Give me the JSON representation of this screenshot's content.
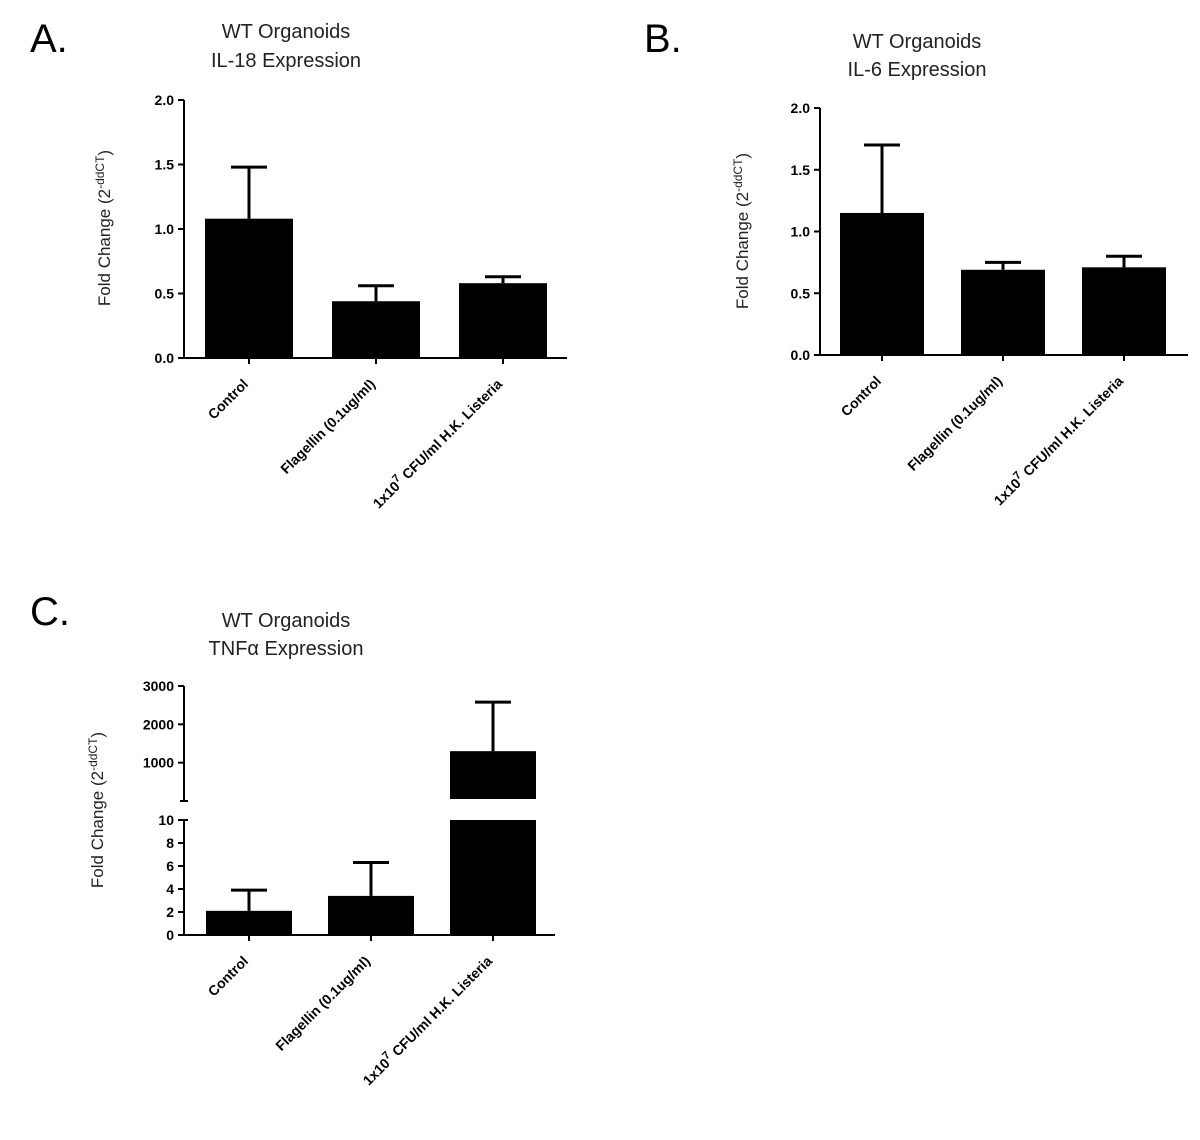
{
  "chart_data": [
    {
      "panel": "A.",
      "type": "bar",
      "title": "WT Organoids",
      "subtitle": "IL-18 Expression",
      "ylabel": "Fold Change (2",
      "ylabel_sup": "-ddCT",
      "ylabel_end": ")",
      "ylim": [
        0,
        2.0
      ],
      "yticks": [
        "0.0",
        "0.5",
        "1.0",
        "1.5",
        "2.0"
      ],
      "categories": [
        "Control",
        "Flagellin (0.1ug/ml)",
        "1x10^7 CFU/ml H.K. Listeria"
      ],
      "values": [
        1.08,
        0.44,
        0.58
      ],
      "errors": [
        0.4,
        0.12,
        0.05
      ]
    },
    {
      "panel": "B.",
      "type": "bar",
      "title": "WT Organoids",
      "subtitle": "IL-6 Expression",
      "ylabel": "Fold Change (2",
      "ylabel_sup": "-ddCT",
      "ylabel_end": ")",
      "ylim": [
        0,
        2.0
      ],
      "yticks": [
        "0.0",
        "0.5",
        "1.0",
        "1.5",
        "2.0"
      ],
      "categories": [
        "Control",
        "Flagellin (0.1ug/ml)",
        "1x10^7 CFU/ml H.K. Listeria"
      ],
      "values": [
        1.15,
        0.69,
        0.71
      ],
      "errors": [
        0.55,
        0.06,
        0.09
      ]
    },
    {
      "panel": "C.",
      "type": "bar",
      "title": "WT Organoids",
      "subtitle": "TNFα Expression",
      "ylabel": "Fold Change (2",
      "ylabel_sup": "-ddCT",
      "ylabel_end": ")",
      "broken_axis": true,
      "lower_ylim": [
        0,
        10
      ],
      "lower_yticks": [
        "0",
        "2",
        "4",
        "6",
        "8",
        "10"
      ],
      "upper_ylim": [
        0,
        3000
      ],
      "upper_yticks": [
        "1000",
        "2000",
        "3000"
      ],
      "categories": [
        "Control",
        "Flagellin (0.1ug/ml)",
        "1x10^7 CFU/ml H.K. Listeria"
      ],
      "values": [
        2.1,
        3.4,
        1300
      ],
      "errors": [
        1.8,
        2.9,
        1280
      ]
    }
  ],
  "category_text": {
    "control": "Control",
    "flagellin": "Flagellin (0.1ug/ml)",
    "listeria_prefix": "1x10",
    "listeria_sup": "7",
    "listeria_suffix": " CFU/ml H.K. Listeria"
  }
}
